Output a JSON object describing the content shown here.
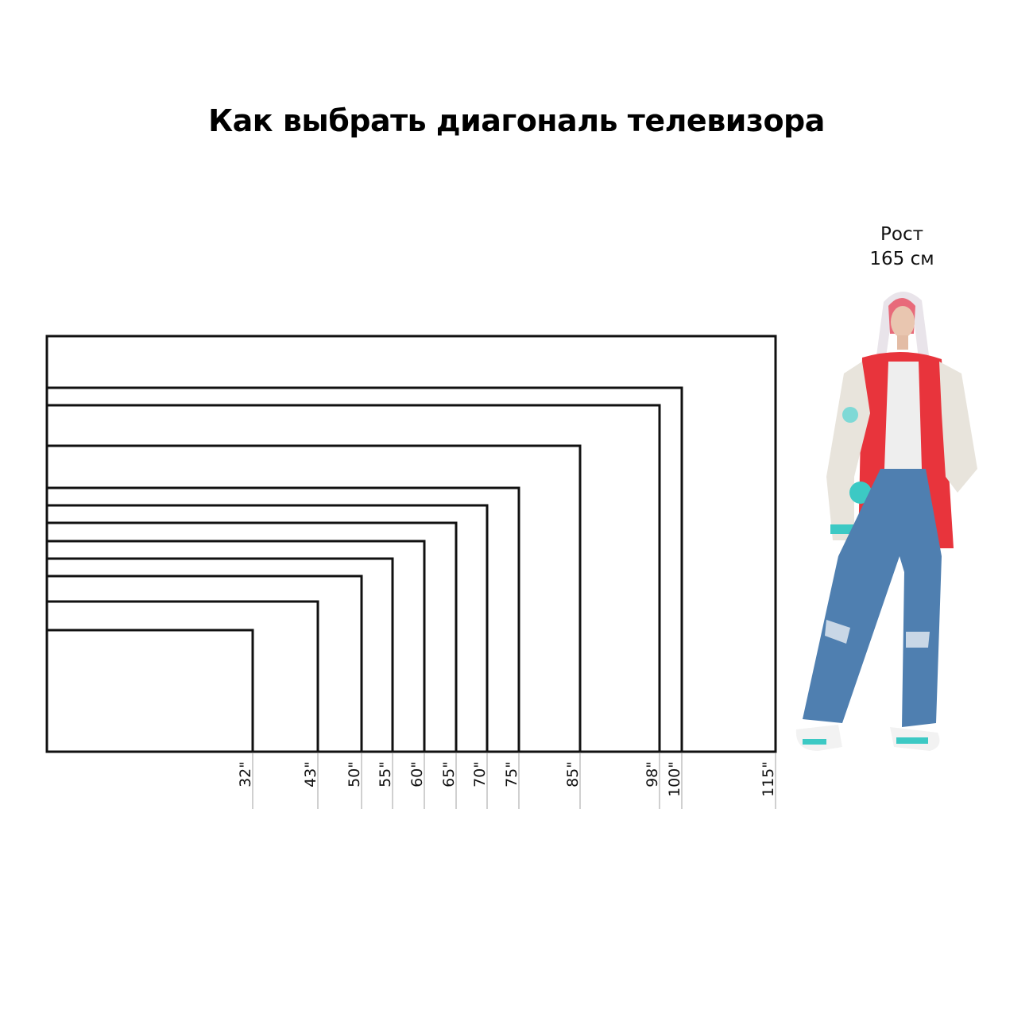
{
  "title": "Как выбрать диагональ телевизора",
  "person": {
    "label_line1": "Рост",
    "label_line2": "165 см",
    "height_cm": 165
  },
  "chart_data": {
    "type": "diagram",
    "aspect_ratio": "16:9",
    "unit_mark": "\"",
    "diagonals": [
      32,
      43,
      50,
      55,
      60,
      65,
      70,
      75,
      85,
      98,
      100,
      115
    ],
    "labels": [
      "32\"",
      "43\"",
      "50\"",
      "55\"",
      "60\"",
      "65\"",
      "70\"",
      "75\"",
      "85\"",
      "98\"",
      "100\"",
      "115\""
    ]
  },
  "colors": {
    "outline": "#111111",
    "guide": "#b0b0b0",
    "jacket": "#e8343c",
    "jeans": "#4f7fb0",
    "accent": "#3cc9c4"
  }
}
